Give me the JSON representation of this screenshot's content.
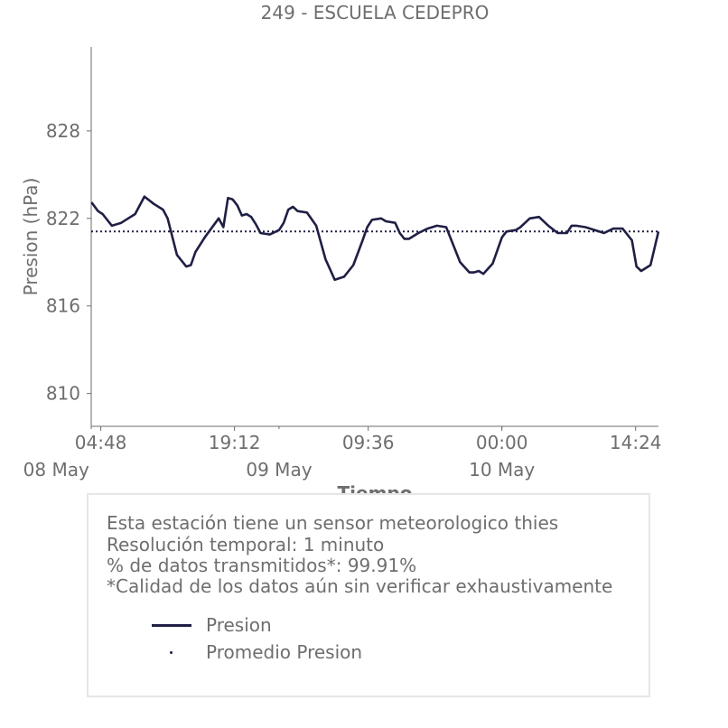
{
  "chart_data": {
    "type": "line",
    "title": "249 - ESCUELA CEDEPRO",
    "xlabel": "Tiempo",
    "ylabel": "Presion (hPa)",
    "ylim": [
      807.75,
      833.75
    ],
    "yticks": [
      810,
      816,
      822,
      828
    ],
    "xticks_time": [
      "04:48",
      "19:12",
      "09:36",
      "00:00",
      "14:24"
    ],
    "xticks_date": [
      "08 May",
      "09 May",
      "10 May"
    ],
    "x_unit": "hours since 08 May 00:00",
    "xlim": [
      3.77,
      64.86
    ],
    "series": [
      {
        "name": "Presion",
        "color": "#1f1f45",
        "x": [
          3.8,
          4.5,
          5.0,
          6.0,
          7.0,
          8.0,
          8.5,
          9.5,
          10.5,
          11.5,
          12.0,
          13.0,
          14.0,
          14.5,
          15.0,
          16.0,
          17.5,
          18.0,
          18.5,
          19.0,
          19.5,
          20.0,
          20.5,
          21.0,
          21.5,
          22.0,
          23.0,
          24.0,
          24.5,
          25.0,
          25.5,
          26.0,
          27.0,
          28.0,
          29.0,
          30.0,
          31.0,
          32.0,
          33.0,
          33.5,
          34.0,
          35.0,
          35.5,
          36.5,
          37.0,
          37.5,
          38.0,
          39.0,
          40.0,
          41.0,
          42.0,
          43.5,
          44.5,
          45.0,
          45.5,
          46.0,
          47.0,
          48.0,
          48.5,
          49.5,
          50.0,
          51.0,
          52.0,
          53.0,
          54.0,
          55.0,
          55.5,
          56.0,
          57.0,
          58.0,
          59.0,
          60.0,
          61.0,
          62.0,
          62.5,
          63.0,
          64.0,
          64.86
        ],
        "values": [
          823.1,
          822.5,
          822.3,
          821.5,
          821.7,
          822.1,
          822.3,
          823.5,
          823.0,
          822.6,
          822.0,
          819.5,
          818.7,
          818.8,
          819.7,
          820.7,
          822.0,
          821.4,
          823.4,
          823.3,
          822.9,
          822.2,
          822.3,
          822.1,
          821.6,
          821.0,
          820.9,
          821.2,
          821.7,
          822.6,
          822.8,
          822.5,
          822.4,
          821.5,
          819.2,
          817.8,
          818.0,
          818.8,
          820.5,
          821.4,
          821.9,
          822.0,
          821.8,
          821.7,
          821.0,
          820.6,
          820.6,
          821.0,
          821.3,
          821.5,
          821.4,
          819.0,
          818.3,
          818.3,
          818.4,
          818.2,
          818.9,
          820.7,
          821.1,
          821.2,
          821.4,
          822.0,
          822.1,
          821.5,
          821.0,
          821.0,
          821.5,
          821.5,
          821.4,
          821.2,
          821.0,
          821.3,
          821.3,
          820.5,
          818.7,
          818.4,
          818.8,
          821.1
        ]
      },
      {
        "name": "Promedio Presion",
        "style": "dotted",
        "color": "#1f1f45",
        "x": [
          3.77,
          64.86
        ],
        "values": [
          821.1,
          821.1
        ]
      }
    ],
    "grid": false,
    "legend_position": "below"
  },
  "info": {
    "line1": "Esta estación tiene un sensor meteorologico thies",
    "line2": "Resolución temporal: 1 minuto",
    "line3": "% de datos transmitidos*: 99.91%",
    "line4": "*Calidad de los datos aún sin verificar exhaustivamente"
  },
  "legend": {
    "item1": "Presion",
    "item2": "Promedio Presion"
  },
  "colors": {
    "series": "#1f1f45",
    "text": "#6e6e6e",
    "axis": "#6e6e6e",
    "box_border": "#e6e6e6"
  }
}
